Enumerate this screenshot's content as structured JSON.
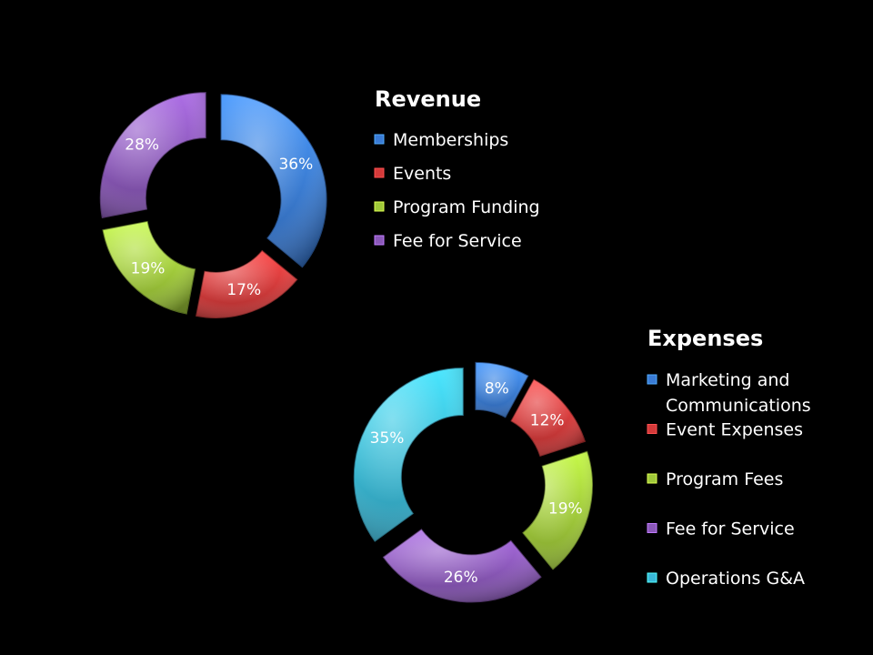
{
  "chart_data": [
    {
      "type": "pie",
      "variant": "exploded-donut",
      "title": "Revenue",
      "categories": [
        "Memberships",
        "Events",
        "Program Funding",
        "Fee for Service"
      ],
      "values": [
        36,
        17,
        19,
        28
      ],
      "value_labels": [
        "36%",
        "17%",
        "19%",
        "28%"
      ],
      "colors": [
        "#3a7bd5",
        "#d43a3a",
        "#9fc83a",
        "#8a58b8"
      ],
      "legend": [
        "Memberships",
        "Events",
        "Program Funding",
        "Fee for Service"
      ],
      "legend_position": "right"
    },
    {
      "type": "pie",
      "variant": "exploded-donut",
      "title": "Expenses",
      "categories": [
        "Marketing and Communications",
        "Event Expenses",
        "Program Fees",
        "Fee for Service",
        "Operations G&A"
      ],
      "values": [
        8,
        12,
        19,
        26,
        35
      ],
      "value_labels": [
        "8%",
        "12%",
        "19%",
        "26%",
        "35%"
      ],
      "colors": [
        "#3a7bd5",
        "#d43a3a",
        "#9fc83a",
        "#8a58b8",
        "#3ab8d8"
      ],
      "legend": [
        [
          "Marketing and",
          "Communications"
        ],
        [
          "Event Expenses"
        ],
        [
          "Program Fees"
        ],
        [
          "Fee for Service"
        ],
        [
          "Operations G&A"
        ]
      ],
      "legend_position": "right"
    }
  ]
}
